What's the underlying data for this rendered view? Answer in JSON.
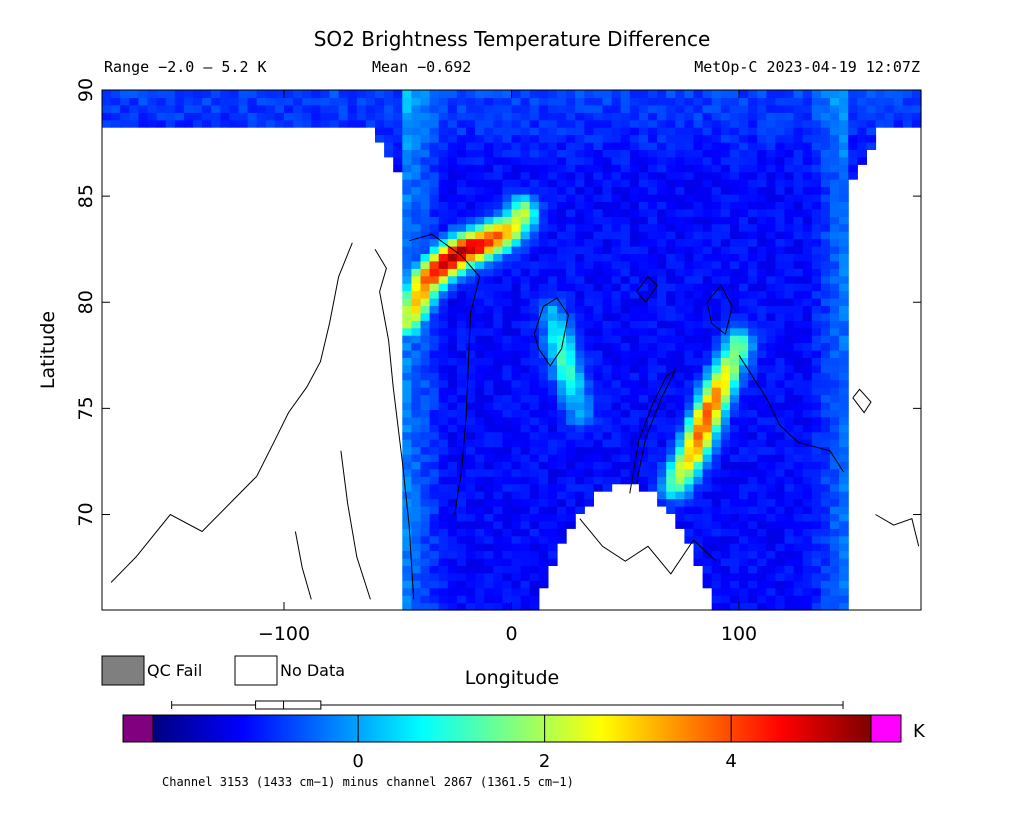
{
  "header": {
    "title": "SO2 Brightness Temperature Difference",
    "range_text": "Range −2.0 – 5.2 K",
    "mean_text": "Mean −0.692",
    "satellite_text": "MetOp-C 2023-04-19 12:07Z"
  },
  "legend": {
    "qc_fail_label": "QC Fail",
    "no_data_label": "No Data",
    "qc_fail_color": "#7f7f7f",
    "no_data_color": "#ffffff"
  },
  "colorbar": {
    "unit": "K",
    "min": -2.2,
    "max": 5.5,
    "ticks": [
      {
        "value": 0,
        "label": "0"
      },
      {
        "value": 2,
        "label": "2"
      },
      {
        "value": 4,
        "label": "4"
      }
    ],
    "under_color": "#800080",
    "over_color": "#ff00ff",
    "colors": [
      "#00007f",
      "#0000ff",
      "#007fff",
      "#00ffff",
      "#7fff7f",
      "#ffff00",
      "#ff7f00",
      "#ff0000",
      "#7f0000"
    ],
    "boxplot": {
      "whisker_min": -2.0,
      "q1": -1.1,
      "median": -0.8,
      "q3": -0.4,
      "whisker_max": 5.2
    },
    "footnote": "Channel 3153 (1433 cm−1) minus channel 2867 (1361.5 cm−1)"
  },
  "chart_data": {
    "type": "heatmap",
    "title": "SO2 Brightness Temperature Difference",
    "xlabel": "Longitude",
    "ylabel": "Latitude",
    "xlim": [
      -180,
      180
    ],
    "ylim": [
      65.5,
      90
    ],
    "xticks": [
      {
        "value": -100,
        "label": "−100"
      },
      {
        "value": 0,
        "label": "0"
      },
      {
        "value": 100,
        "label": "100"
      }
    ],
    "yticks": [
      {
        "value": 70,
        "label": "70"
      },
      {
        "value": 75,
        "label": "75"
      },
      {
        "value": 80,
        "label": "80"
      },
      {
        "value": 85,
        "label": "85"
      },
      {
        "value": 90,
        "label": "90"
      }
    ],
    "value_range": [
      -2.0,
      5.2
    ],
    "mean": -0.692,
    "unit": "K",
    "background_value": -1.2,
    "swath": {
      "lon_min": -46,
      "lon_max": 148,
      "lat_min": 65.5,
      "lat_max": 90
    },
    "no_data_regions": [
      {
        "name": "west-gap",
        "lon_range": [
          -180,
          -46
        ],
        "lat_top": 88.3
      },
      {
        "name": "east-gap",
        "lon_range": [
          148,
          180
        ],
        "lat_top": 88.3
      },
      {
        "name": "south-gap",
        "lon_center": 50,
        "lon_half_width": 40,
        "lat_top": 71.5
      }
    ],
    "features": [
      {
        "name": "plume-greenland",
        "points": [
          [
            -45,
            79.2
          ],
          [
            -38,
            81.0
          ],
          [
            -30,
            81.8
          ],
          [
            -22,
            82.4
          ],
          [
            -12,
            82.8
          ],
          [
            0,
            83.5
          ],
          [
            5,
            84.2
          ]
        ],
        "peak": 5.2
      },
      {
        "name": "plume-novaya-zemlya",
        "points": [
          [
            72,
            71.5
          ],
          [
            80,
            73.0
          ],
          [
            86,
            74.7
          ],
          [
            93,
            76.4
          ],
          [
            100,
            78.0
          ]
        ],
        "peak": 4.0
      },
      {
        "name": "streak-svalbard",
        "points": [
          [
            18,
            79.5
          ],
          [
            24,
            77.0
          ],
          [
            30,
            74.8
          ]
        ],
        "peak": 1.2
      }
    ]
  }
}
